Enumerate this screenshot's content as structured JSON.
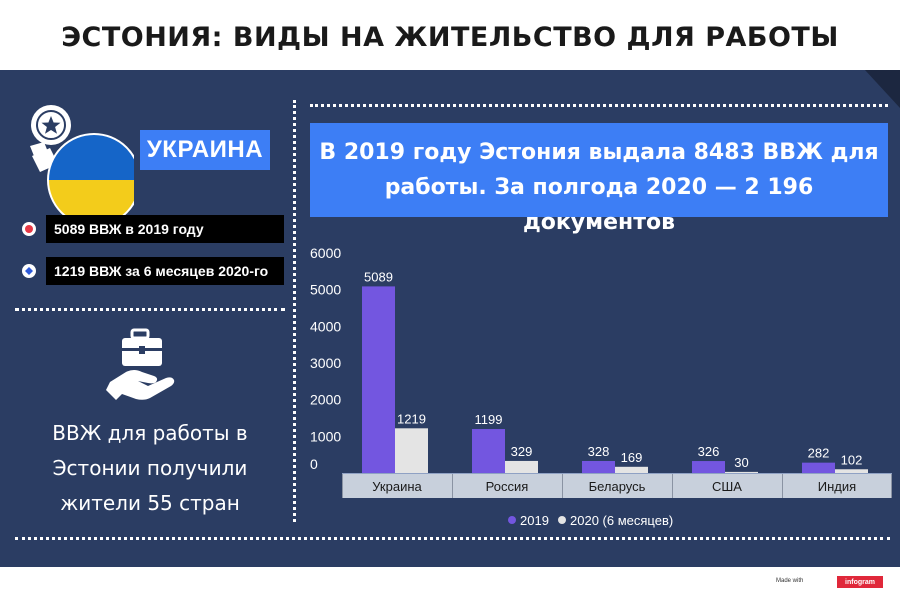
{
  "title": "ЭСТОНИЯ: ВИДЫ НА ЖИТЕЛЬСТВО ДЛЯ РАБОТЫ",
  "country_label": "УКРАИНА",
  "stats": [
    {
      "text": "5089 ВВЖ в 2019 году",
      "icon": "red-circle-icon",
      "color": "#e63946"
    },
    {
      "text": "1219 ВВЖ за 6 месяцев 2020-го",
      "icon": "blue-diamond-icon",
      "color": "#2f5bd9"
    }
  ],
  "side_text": [
    "ВВЖ для работы в",
    "Эстонии получили",
    "жители 55 стран"
  ],
  "headline": [
    "В 2019 году Эстония выдала 8483 ВВЖ для",
    "работы. За полгода 2020 — 2 196 документов"
  ],
  "colors": {
    "panel": "#2b3d63",
    "accent": "#3d7ef5",
    "series_2019": "#7356e0",
    "series_2020": "#e4e4e4",
    "flag_blue": "#1565c8",
    "flag_yellow": "#f3cc1b"
  },
  "footer": {
    "made_with": "Made with",
    "brand": "infogram"
  },
  "chart_data": {
    "type": "bar",
    "categories": [
      "Украина",
      "Россия",
      "Беларусь",
      "США",
      "Индия"
    ],
    "series": [
      {
        "name": "2019",
        "values": [
          5089,
          1199,
          328,
          326,
          282
        ]
      },
      {
        "name": "2020 (6 месяцев)",
        "values": [
          1219,
          329,
          169,
          30,
          102
        ]
      }
    ],
    "ylim": [
      0,
      6000
    ],
    "yticks": [
      0,
      1000,
      2000,
      3000,
      4000,
      5000,
      6000
    ],
    "grid": false,
    "legend": "bottom"
  }
}
